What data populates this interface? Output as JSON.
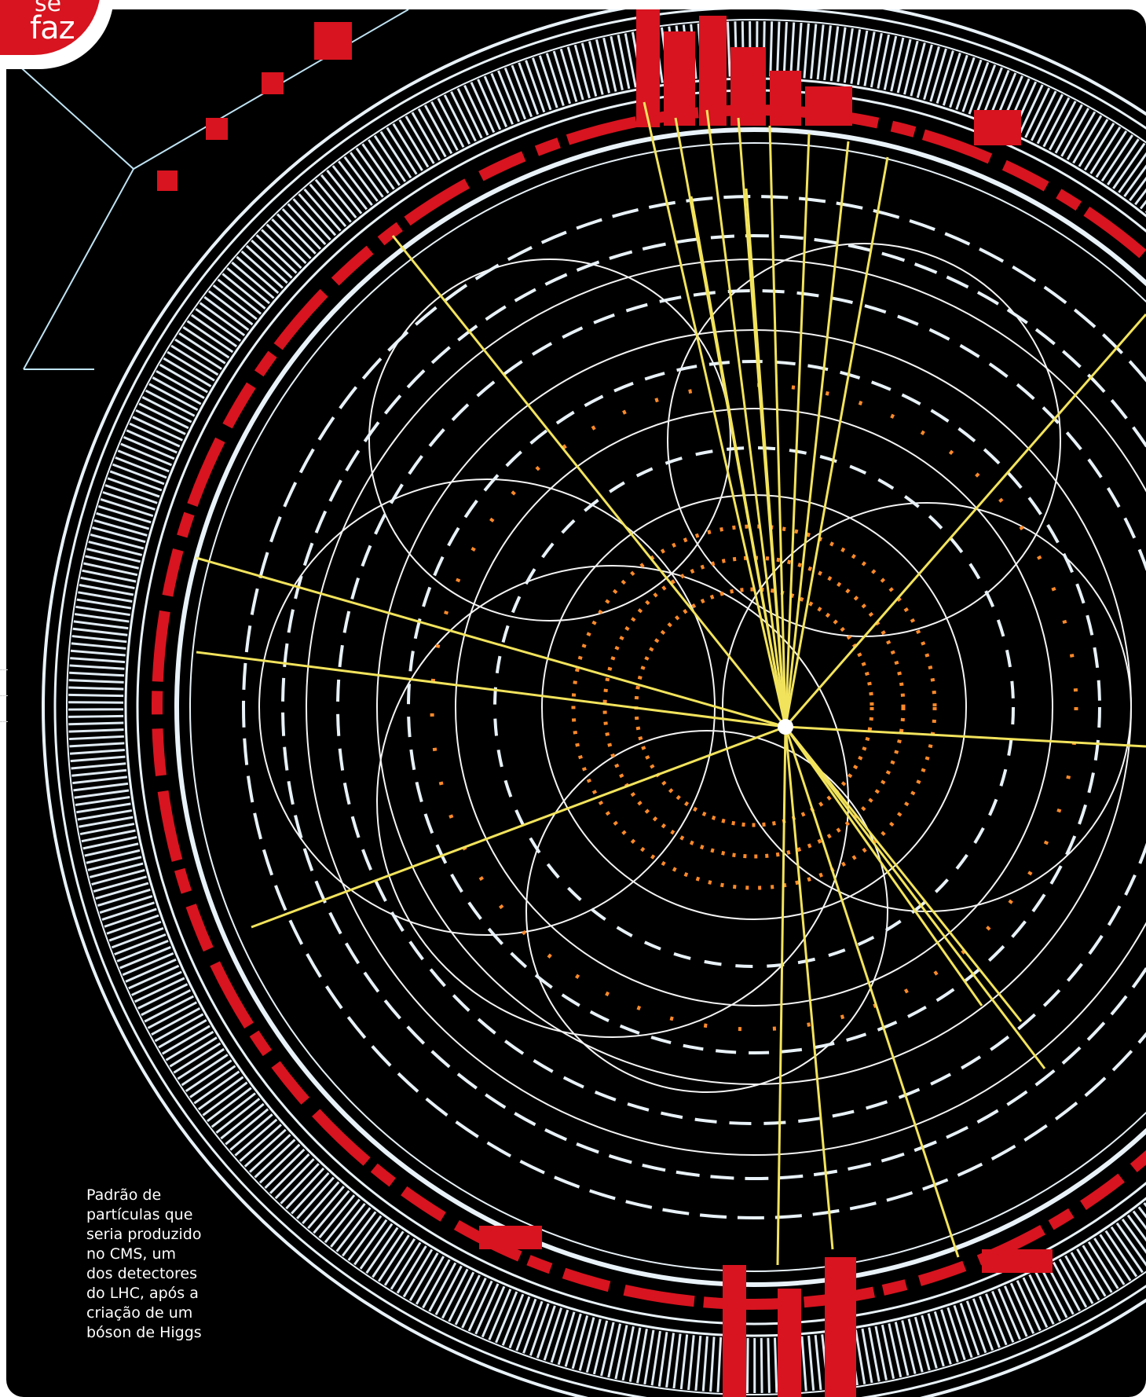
{
  "badge": {
    "top_text": "se",
    "text": "faz"
  },
  "caption": "Padrão de\npartículas que\nseria produzido\nno CMS, um\ndos detectores\ndo LHC, após a\ncriação de um\nbóson de Higgs",
  "colors": {
    "background": "#000000",
    "red": "#d7141f",
    "tracks": "#e8f2f8",
    "jets": "#f2e35c",
    "hits": "#ff8a2a"
  }
}
